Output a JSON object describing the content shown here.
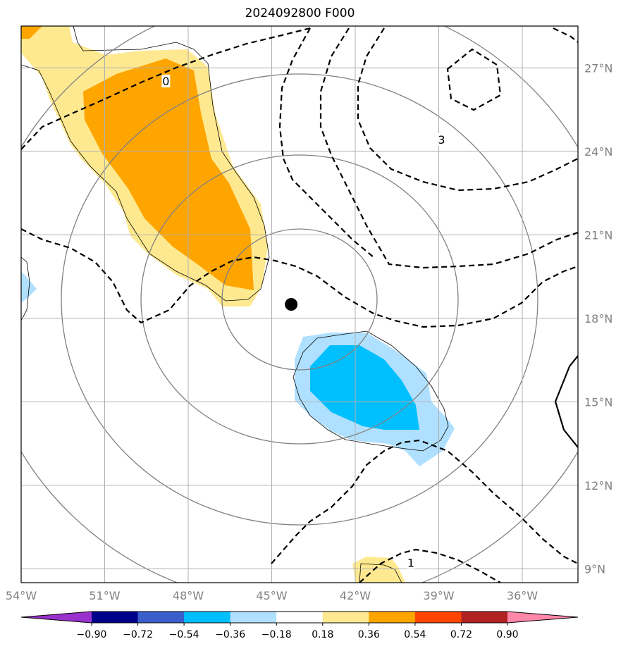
{
  "title": "2024092800 F000",
  "map": {
    "lon_range": [
      -54,
      -34
    ],
    "lat_range": [
      8.5,
      28.5
    ],
    "lon_ticks": [
      -54,
      -51,
      -48,
      -45,
      -42,
      -39,
      -36
    ],
    "lat_ticks": [
      9,
      12,
      15,
      18,
      21,
      24,
      27
    ],
    "lon_tick_labels": [
      "54°W",
      "51°W",
      "48°W",
      "45°W",
      "42°W",
      "39°W",
      "36°W"
    ],
    "lat_tick_labels": [
      "9°N",
      "12°N",
      "15°N",
      "18°N",
      "21°N",
      "24°N",
      "27°N"
    ],
    "grid": true,
    "center_marker": {
      "lon": -44.3,
      "lat": 18.5
    },
    "contour_labels": [
      {
        "text": "0",
        "lon": -48.8,
        "lat": 26.5
      },
      {
        "text": "3",
        "lon": -38.9,
        "lat": 24.4
      },
      {
        "text": "1",
        "lon": -40.0,
        "lat": 9.2
      }
    ],
    "colors": {
      "light_yellow": "#ffe990",
      "orange": "#ffa500",
      "light_blue": "#b0e0ff",
      "deep_sky_blue": "#00bfff",
      "grid": "#b0b0b0",
      "range_rings": "#808080"
    }
  },
  "colorbar": {
    "tick_labels": [
      "−0.90",
      "−0.72",
      "−0.54",
      "−0.36",
      "−0.18",
      "0.18",
      "0.36",
      "0.54",
      "0.72",
      "0.90"
    ],
    "colors": [
      "#9932cc",
      "#00008b",
      "#3a5fcd",
      "#00bfff",
      "#b0e0ff",
      "#ffffff",
      "#ffe990",
      "#ffa500",
      "#ff4500",
      "#b22222",
      "#ff88aa"
    ]
  }
}
